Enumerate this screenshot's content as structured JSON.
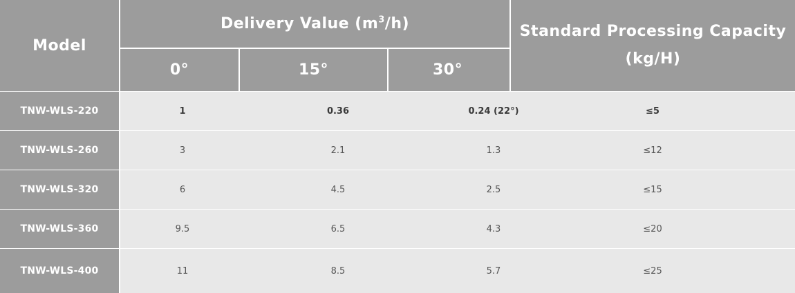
{
  "table": {
    "headers": {
      "model": "Model",
      "delivery_value_prefix": "Delivery Value (m",
      "delivery_value_sup": "3",
      "delivery_value_suffix": "/h)",
      "angle_0": "0°",
      "angle_15": "15°",
      "angle_30": "30°",
      "capacity_line1": "Standard Processing Capacity",
      "capacity_line2": "(kg/H)"
    },
    "rows": [
      {
        "model": "TNW-WLS-220",
        "v0": "1",
        "v15": "0.36",
        "v30": "0.24 (22°)",
        "capacity": "≤5"
      },
      {
        "model": "TNW-WLS-260",
        "v0": "3",
        "v15": "2.1",
        "v30": "1.3",
        "capacity": "≤12"
      },
      {
        "model": "TNW-WLS-320",
        "v0": "6",
        "v15": "4.5",
        "v30": "2.5",
        "capacity": "≤15"
      },
      {
        "model": "TNW-WLS-360",
        "v0": "9.5",
        "v15": "6.5",
        "v30": "4.3",
        "capacity": "≤20"
      },
      {
        "model": "TNW-WLS-400",
        "v0": "11",
        "v15": "8.5",
        "v30": "5.7",
        "capacity": "≤25"
      }
    ]
  },
  "colors": {
    "header_bg": "#9c9c9c",
    "header_text": "#ffffff",
    "body_bg": "#e8e8e8",
    "body_text": "#555555",
    "grid": "#ffffff"
  }
}
